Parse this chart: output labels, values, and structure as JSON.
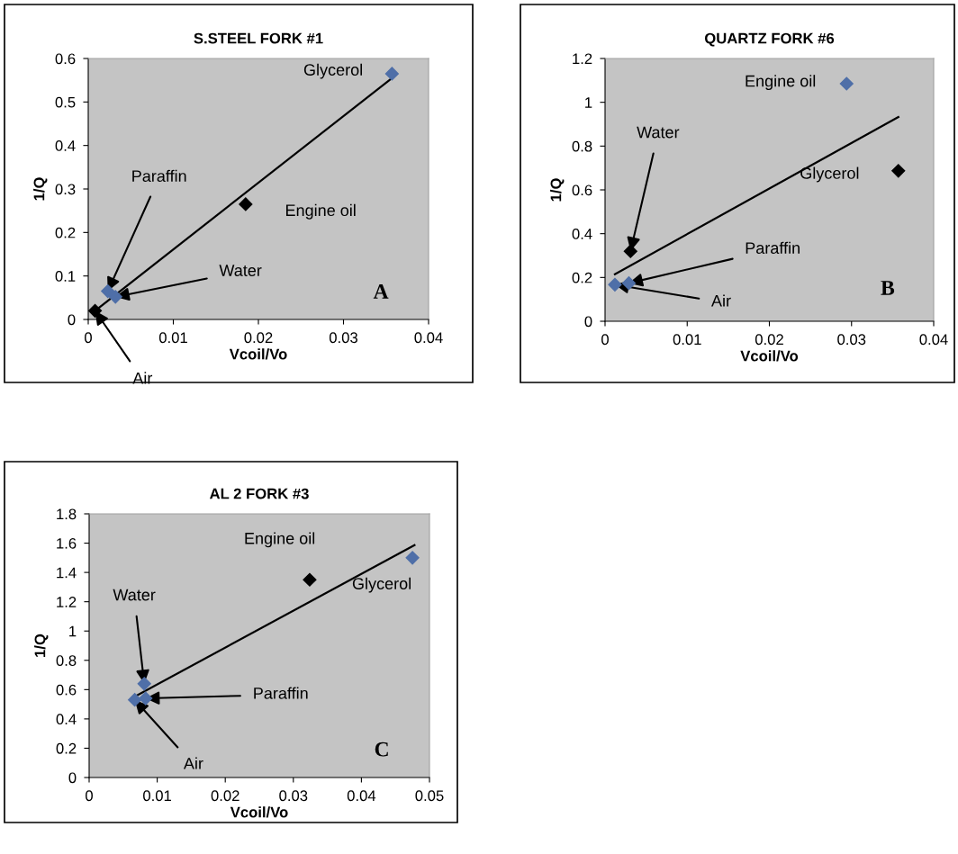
{
  "chart_data": [
    {
      "type": "scatter",
      "title": "S.STEEL FORK #1",
      "xlabel": "Vcoil/Vo",
      "ylabel": "1/Q",
      "xlim": [
        0,
        0.04
      ],
      "xticks": [
        0,
        0.01,
        0.02,
        0.03,
        0.04
      ],
      "ylim": [
        0,
        0.6
      ],
      "yticks": [
        0,
        0.1,
        0.2,
        0.3,
        0.4,
        0.5,
        0.6
      ],
      "grid": false,
      "marker": "diamond",
      "series": [
        {
          "x": [
            0.0008,
            0.0023,
            0.0032,
            0.0185,
            0.0357
          ],
          "values": [
            0.02,
            0.065,
            0.052,
            0.265,
            0.565
          ],
          "colors": [
            "#000000",
            "#4f6fa8",
            "#4f6fa8",
            "#000000",
            "#4f6fa8"
          ]
        },
        {
          "type": "line",
          "marker": "none",
          "x": [
            0.0008,
            0.0357
          ],
          "values": [
            0.02,
            0.555
          ],
          "color": "#000000"
        }
      ],
      "annotations": [
        {
          "text": "Air",
          "x": 0.0008,
          "y": 0.02
        },
        {
          "text": "Paraffin",
          "x": 0.0023,
          "y": 0.065
        },
        {
          "text": "Water",
          "x": 0.0032,
          "y": 0.052
        },
        {
          "text": "Engine oil",
          "x": 0.0185,
          "y": 0.265
        },
        {
          "text": "Glycerol",
          "x": 0.0357,
          "y": 0.565
        },
        "A"
      ]
    },
    {
      "type": "scatter",
      "title": "QUARTZ FORK #6",
      "xlabel": "Vcoil/Vo",
      "ylabel": "1/Q",
      "xlim": [
        0,
        0.04
      ],
      "xticks": [
        0,
        0.01,
        0.02,
        0.03,
        0.04
      ],
      "ylim": [
        0,
        1.2
      ],
      "yticks": [
        0,
        0.2,
        0.4,
        0.6,
        0.8,
        1,
        1.2
      ],
      "grid": false,
      "marker": "diamond",
      "series": [
        {
          "x": [
            0.0012,
            0.0029,
            0.0031,
            0.0294,
            0.0357
          ],
          "values": [
            0.167,
            0.174,
            0.32,
            1.085,
            0.687
          ],
          "colors": [
            "#4f6fa8",
            "#4f6fa8",
            "#000000",
            "#4f6fa8",
            "#000000"
          ]
        },
        {
          "type": "line",
          "marker": "none",
          "x": [
            0.0012,
            0.0357
          ],
          "values": [
            0.215,
            0.933
          ],
          "color": "#000000"
        }
      ],
      "annotations": [
        {
          "text": "Air",
          "x": 0.0012,
          "y": 0.167
        },
        {
          "text": "Paraffin",
          "x": 0.0029,
          "y": 0.174
        },
        {
          "text": "Water",
          "x": 0.0031,
          "y": 0.32
        },
        {
          "text": "Engine oil",
          "x": 0.0294,
          "y": 1.085
        },
        {
          "text": "Glycerol",
          "x": 0.0357,
          "y": 0.687
        },
        "B"
      ]
    },
    {
      "type": "scatter",
      "title": "AL 2 FORK #3",
      "xlabel": "Vcoil/Vo",
      "ylabel": "1/Q",
      "xlim": [
        0,
        0.05
      ],
      "xticks": [
        0,
        0.01,
        0.02,
        0.03,
        0.04,
        0.05
      ],
      "ylim": [
        0,
        1.8
      ],
      "yticks": [
        0,
        0.2,
        0.4,
        0.6,
        0.8,
        1,
        1.2,
        1.4,
        1.6,
        1.8
      ],
      "grid": false,
      "marker": "diamond",
      "series": [
        {
          "x": [
            0.0067,
            0.0083,
            0.0081,
            0.0324,
            0.0475
          ],
          "values": [
            0.53,
            0.54,
            0.64,
            1.35,
            1.5
          ],
          "colors": [
            "#4f6fa8",
            "#4f6fa8",
            "#4f6fa8",
            "#000000",
            "#4f6fa8"
          ]
        },
        {
          "type": "line",
          "marker": "none",
          "x": [
            0.0068,
            0.0478
          ],
          "values": [
            0.555,
            1.586
          ],
          "color": "#000000"
        }
      ],
      "annotations": [
        {
          "text": "Air",
          "x": 0.0067,
          "y": 0.53
        },
        {
          "text": "Paraffin",
          "x": 0.0083,
          "y": 0.54
        },
        {
          "text": "Water",
          "x": 0.0081,
          "y": 0.64
        },
        {
          "text": "Engine oil",
          "x": 0.0324,
          "y": 1.35
        },
        "Glycerol",
        "C"
      ]
    }
  ]
}
